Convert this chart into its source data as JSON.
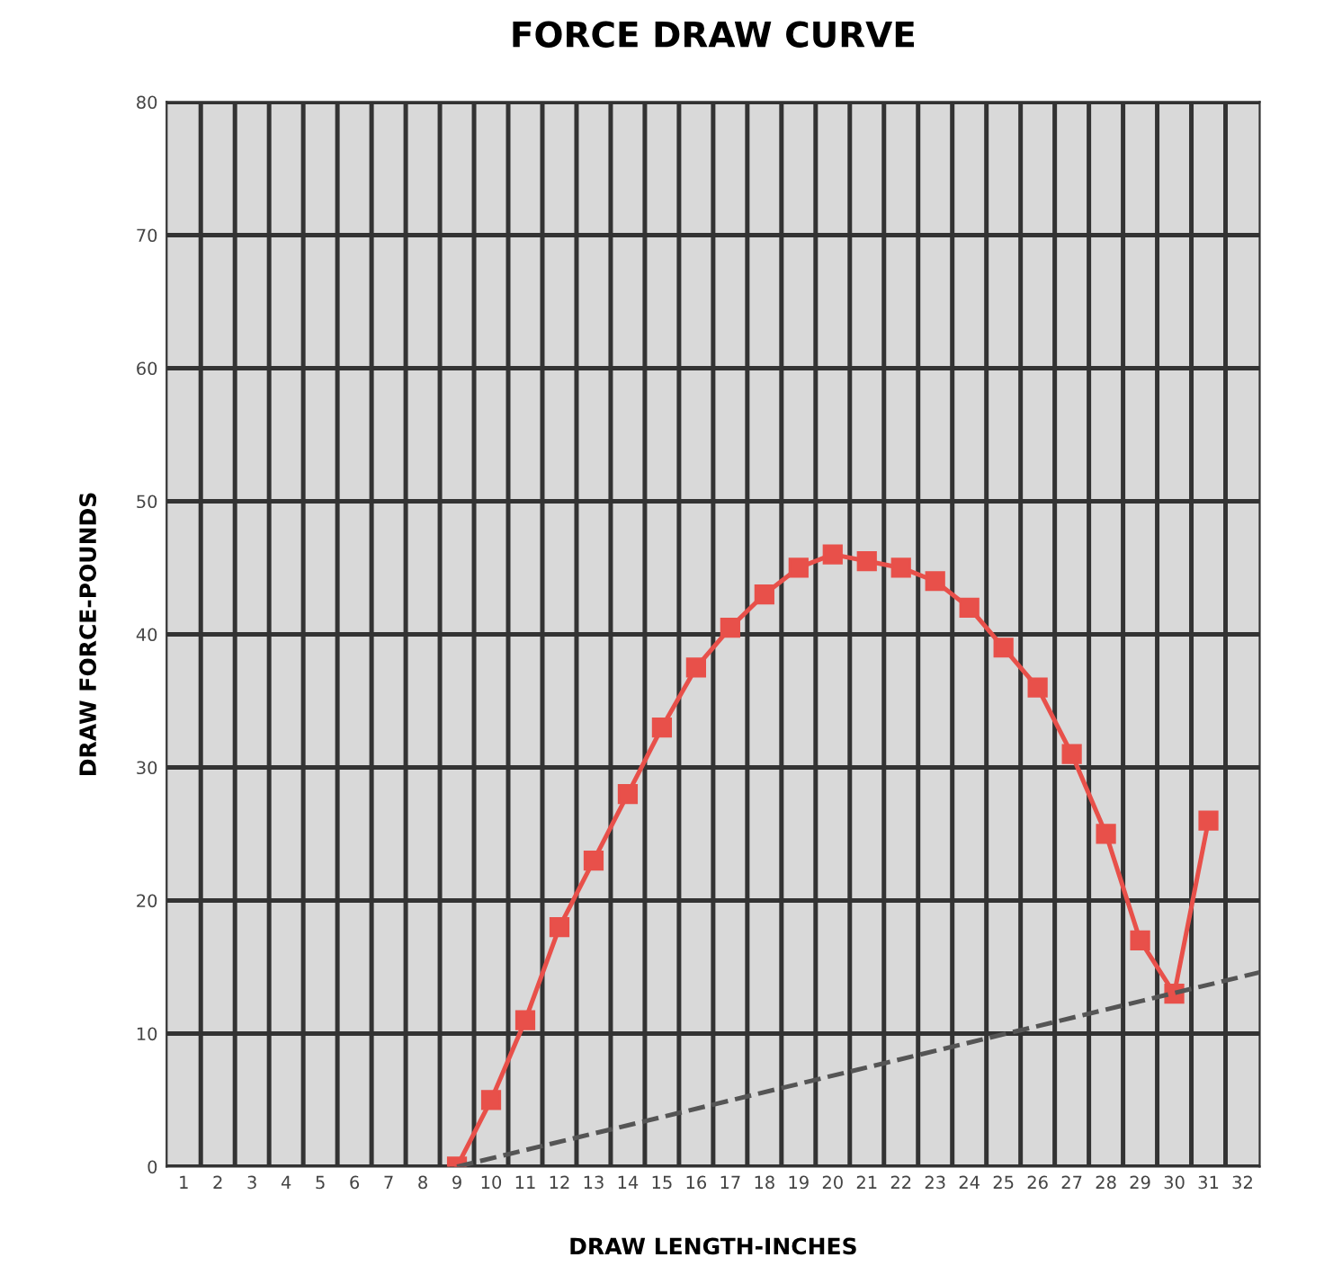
{
  "chart_data": {
    "type": "line",
    "title": "FORCE DRAW CURVE",
    "xlabel": "DRAW LENGTH-INCHES",
    "ylabel": "DRAW FORCE-POUNDS",
    "series": [
      {
        "x": [
          9,
          10,
          11,
          12,
          13,
          14,
          15,
          16,
          17,
          18,
          19,
          20,
          21,
          22,
          23,
          24,
          25,
          26,
          27,
          28,
          29,
          30,
          31
        ],
        "values": [
          0,
          5,
          11,
          18,
          23,
          28,
          33,
          37.5,
          40.5,
          43,
          45,
          46,
          45.5,
          45,
          44,
          42,
          39,
          36,
          31,
          25,
          17,
          13,
          26
        ],
        "color": "#e8504a",
        "marker": "square",
        "line_style": "solid"
      },
      {
        "type": "line",
        "x": [
          9,
          32.5
        ],
        "values": [
          0,
          14.6
        ],
        "color": "#555555",
        "marker": "none",
        "line_style": "dashed"
      }
    ],
    "xlim": [
      0.5,
      32.5
    ],
    "xticks": [
      1,
      2,
      3,
      4,
      5,
      6,
      7,
      8,
      9,
      10,
      11,
      12,
      13,
      14,
      15,
      16,
      17,
      18,
      19,
      20,
      21,
      22,
      23,
      24,
      25,
      26,
      27,
      28,
      29,
      30,
      31,
      32
    ],
    "ylim": [
      0,
      80
    ],
    "yticks": [
      0,
      10,
      20,
      30,
      40,
      50,
      60,
      70,
      80
    ],
    "grid": true,
    "legend": false
  }
}
